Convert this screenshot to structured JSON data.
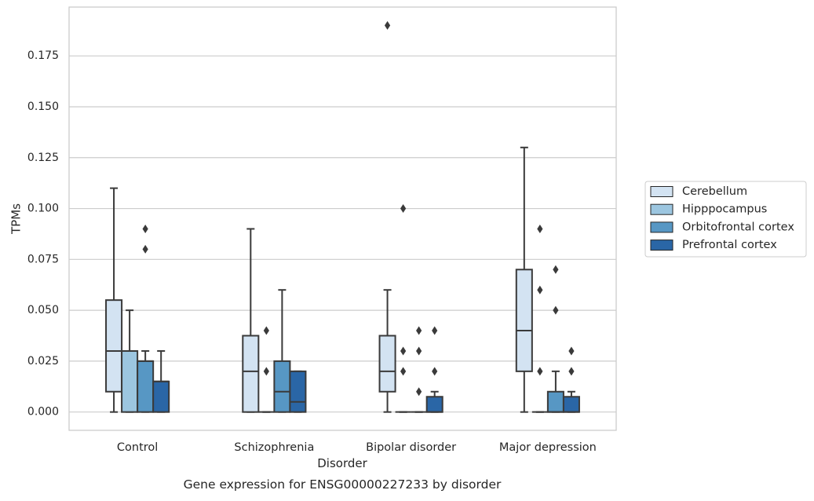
{
  "caption": "Gene expression for ENSG00000227233 by disorder",
  "chart_data": {
    "type": "boxplot",
    "xlabel": "Disorder",
    "ylabel": "TPMs",
    "ylim": [
      -0.009,
      0.199
    ],
    "yticks": [
      0.0,
      0.025,
      0.05,
      0.075,
      0.1,
      0.125,
      0.15,
      0.175
    ],
    "ytick_labels": [
      "0.000",
      "0.025",
      "0.050",
      "0.075",
      "0.100",
      "0.125",
      "0.150",
      "0.175"
    ],
    "grid": true,
    "legend_position": "right",
    "categories": [
      "Control",
      "Schizophrenia",
      "Bipolar disorder",
      "Major depression"
    ],
    "series": [
      {
        "name": "Cerebellum",
        "color": "#d3e3f2",
        "boxes": [
          {
            "whislo": 0.0,
            "q1": 0.01,
            "med": 0.03,
            "q3": 0.055,
            "whishi": 0.11,
            "fliers": []
          },
          {
            "whislo": 0.0,
            "q1": 0.0,
            "med": 0.02,
            "q3": 0.0375,
            "whishi": 0.09,
            "fliers": []
          },
          {
            "whislo": 0.0,
            "q1": 0.01,
            "med": 0.02,
            "q3": 0.0375,
            "whishi": 0.06,
            "fliers": [
              0.19
            ]
          },
          {
            "whislo": 0.0,
            "q1": 0.02,
            "med": 0.04,
            "q3": 0.07,
            "whishi": 0.13,
            "fliers": []
          }
        ]
      },
      {
        "name": "Hipppocampus",
        "color": "#9cc6e0",
        "boxes": [
          {
            "whislo": 0.0,
            "q1": 0.0,
            "med": 0.03,
            "q3": 0.03,
            "whishi": 0.05,
            "fliers": []
          },
          {
            "whislo": 0.0,
            "q1": 0.0,
            "med": 0.0,
            "q3": 0.0,
            "whishi": 0.0,
            "fliers": [
              0.02,
              0.04
            ]
          },
          {
            "whislo": 0.0,
            "q1": 0.0,
            "med": 0.0,
            "q3": 0.0,
            "whishi": 0.0,
            "fliers": [
              0.02,
              0.03,
              0.1
            ]
          },
          {
            "whislo": 0.0,
            "q1": 0.0,
            "med": 0.0,
            "q3": 0.0,
            "whishi": 0.0,
            "fliers": [
              0.02,
              0.06,
              0.09
            ]
          }
        ]
      },
      {
        "name": "Orbitofrontal cortex",
        "color": "#5797c4",
        "boxes": [
          {
            "whislo": 0.0,
            "q1": 0.0,
            "med": 0.025,
            "q3": 0.025,
            "whishi": 0.03,
            "fliers": [
              0.08,
              0.09
            ]
          },
          {
            "whislo": 0.0,
            "q1": 0.0,
            "med": 0.01,
            "q3": 0.025,
            "whishi": 0.06,
            "fliers": []
          },
          {
            "whislo": 0.0,
            "q1": 0.0,
            "med": 0.0,
            "q3": 0.0,
            "whishi": 0.0,
            "fliers": [
              0.01,
              0.03,
              0.04
            ]
          },
          {
            "whislo": 0.0,
            "q1": 0.0,
            "med": 0.0,
            "q3": 0.01,
            "whishi": 0.02,
            "fliers": [
              0.05,
              0.07
            ]
          }
        ]
      },
      {
        "name": "Prefrontal cortex",
        "color": "#2a66a6",
        "boxes": [
          {
            "whislo": 0.0,
            "q1": 0.0,
            "med": 0.015,
            "q3": 0.015,
            "whishi": 0.03,
            "fliers": []
          },
          {
            "whislo": 0.0,
            "q1": 0.0,
            "med": 0.005,
            "q3": 0.02,
            "whishi": 0.02,
            "fliers": []
          },
          {
            "whislo": 0.0,
            "q1": 0.0,
            "med": 0.0,
            "q3": 0.0075,
            "whishi": 0.01,
            "fliers": [
              0.02,
              0.04
            ]
          },
          {
            "whislo": 0.0,
            "q1": 0.0,
            "med": 0.0,
            "q3": 0.0075,
            "whishi": 0.01,
            "fliers": [
              0.02,
              0.03
            ]
          }
        ]
      }
    ]
  }
}
